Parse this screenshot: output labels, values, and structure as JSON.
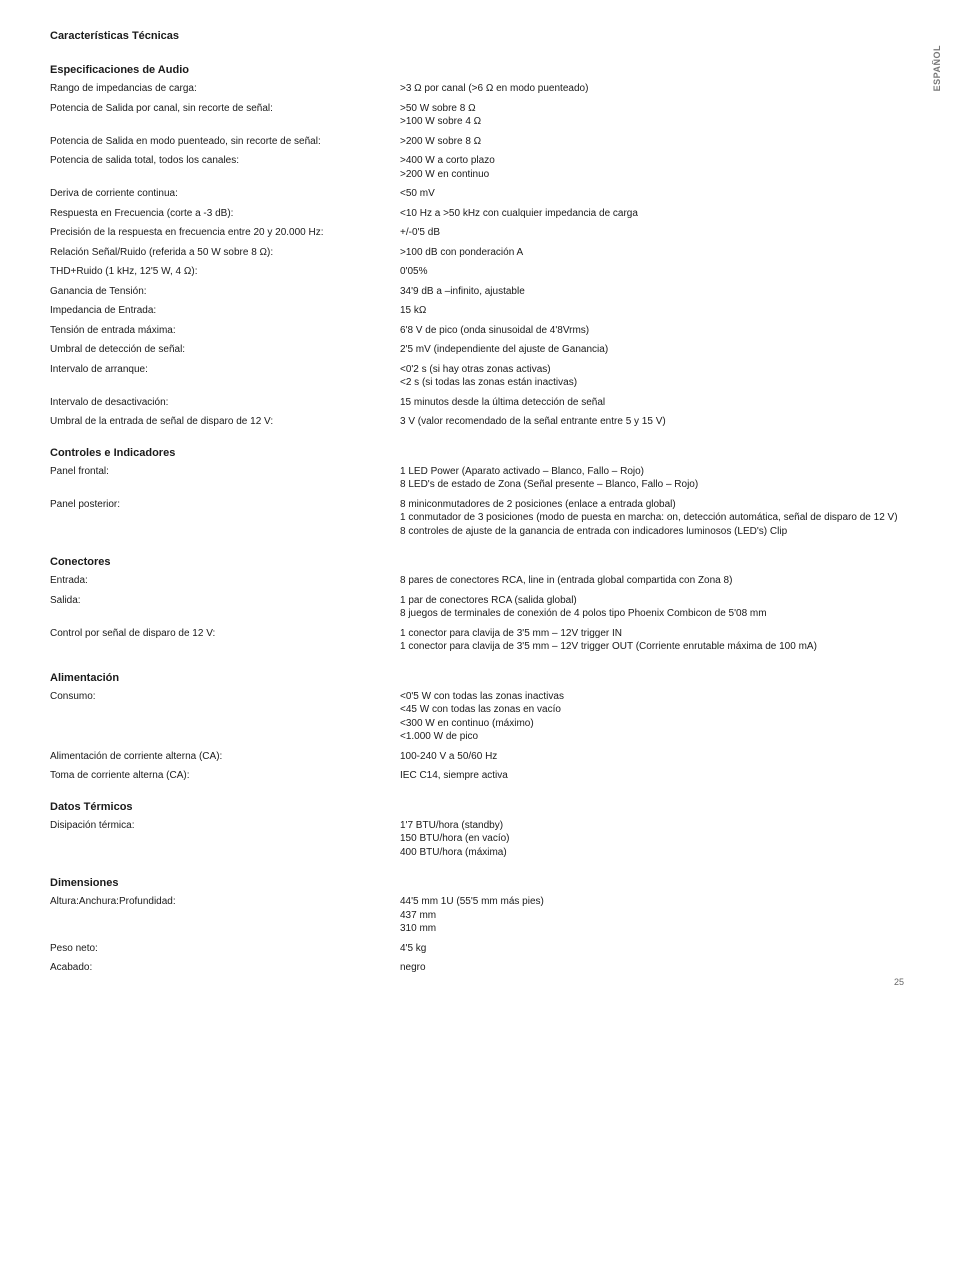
{
  "sideLabel": "ESPAÑOL",
  "pageTitle": "Características Técnicas",
  "pageNumber": "25",
  "sections": [
    {
      "heading": "Especificaciones de Audio",
      "rows": [
        {
          "label": "Rango de impedancias de carga:",
          "value": ">3 Ω por canal (>6 Ω en modo puenteado)"
        },
        {
          "label": "Potencia de Salida por canal, sin recorte de señal:",
          "value": ">50 W sobre 8 Ω\n>100 W sobre 4 Ω"
        },
        {
          "label": "Potencia de Salida en modo puenteado, sin recorte de señal:",
          "value": ">200 W sobre 8 Ω"
        },
        {
          "label": "Potencia de salida total, todos los canales:",
          "value": ">400 W a corto plazo\n>200 W en continuo"
        },
        {
          "label": "Deriva de corriente continua:",
          "value": "<50 mV"
        },
        {
          "label": "Respuesta en Frecuencia (corte a -3 dB):",
          "value": "<10 Hz a >50 kHz con cualquier impedancia de carga"
        },
        {
          "label": "Precisión de la respuesta en frecuencia entre 20 y 20.000 Hz:",
          "value": "+/-0'5 dB"
        },
        {
          "label": "Relación Señal/Ruido (referida a 50 W sobre 8 Ω):",
          "value": ">100 dB con ponderación A"
        },
        {
          "label": "THD+Ruido (1 kHz, 12'5 W, 4 Ω):",
          "value": "0'05%"
        },
        {
          "label": "Ganancia de Tensión:",
          "value": "34'9 dB a –infinito, ajustable"
        },
        {
          "label": "Impedancia de Entrada:",
          "value": "15 kΩ"
        },
        {
          "label": "Tensión de entrada máxima:",
          "value": "6'8 V de pico (onda sinusoidal de 4'8Vrms)"
        },
        {
          "label": "Umbral de detección de señal:",
          "value": "2'5 mV (independiente del ajuste de Ganancia)"
        },
        {
          "label": "Intervalo de arranque:",
          "value": "<0'2 s (si hay otras zonas activas)\n<2 s (si todas las zonas están inactivas)"
        },
        {
          "label": "Intervalo de desactivación:",
          "value": "15 minutos desde la última detección de señal"
        },
        {
          "label": "Umbral de la entrada de señal de disparo de 12 V:",
          "value": "3 V (valor recomendado de la señal entrante entre 5 y 15 V)"
        }
      ]
    },
    {
      "heading": "Controles e Indicadores",
      "rows": [
        {
          "label": "Panel frontal:",
          "value": "1 LED Power (Aparato activado – Blanco, Fallo – Rojo)\n8 LED's de estado de Zona (Señal presente – Blanco, Fallo – Rojo)"
        },
        {
          "label": "Panel posterior:",
          "value": "8 miniconmutadores de 2 posiciones (enlace a entrada global)\n1 conmutador de 3 posiciones (modo de puesta en marcha: on, detección automática, señal de disparo de 12 V)\n8 controles de ajuste de la ganancia de entrada con indicadores luminosos (LED's) Clip"
        }
      ]
    },
    {
      "heading": "Conectores",
      "rows": [
        {
          "label": "Entrada:",
          "value": "8 pares de conectores RCA, line in (entrada global compartida con Zona 8)"
        },
        {
          "label": "Salida:",
          "value": "1 par de conectores RCA (salida global)\n8 juegos de terminales de conexión de 4 polos tipo Phoenix Combicon de 5'08 mm"
        },
        {
          "label": "Control por señal de disparo de 12 V:",
          "value": "1 conector para clavija de 3'5 mm – 12V trigger IN\n1 conector para clavija de 3'5 mm – 12V trigger OUT (Corriente enrutable máxima de 100 mA)"
        }
      ]
    },
    {
      "heading": "Alimentación",
      "rows": [
        {
          "label": "Consumo:",
          "value": "<0'5 W con todas las zonas inactivas\n<45 W con todas las zonas en vacío\n<300 W en continuo (máximo)\n<1.000 W de pico"
        },
        {
          "label": "Alimentación de corriente alterna (CA):",
          "value": "100-240 V a 50/60 Hz"
        },
        {
          "label": "Toma de corriente alterna (CA):",
          "value": "IEC C14, siempre activa"
        }
      ]
    },
    {
      "heading": "Datos Térmicos",
      "rows": [
        {
          "label": "Disipación térmica:",
          "value": "1'7 BTU/hora (standby)\n150 BTU/hora (en vacío)\n400 BTU/hora (máxima)"
        }
      ]
    },
    {
      "heading": "Dimensiones",
      "rows": [
        {
          "label": "Altura:\nAnchura:\nProfundidad:",
          "value": "44'5 mm 1U (55'5 mm más pies)\n437 mm\n310 mm"
        },
        {
          "label": "Peso neto:",
          "value": "4'5 kg"
        },
        {
          "label": "Acabado:",
          "value": "negro"
        }
      ]
    }
  ]
}
